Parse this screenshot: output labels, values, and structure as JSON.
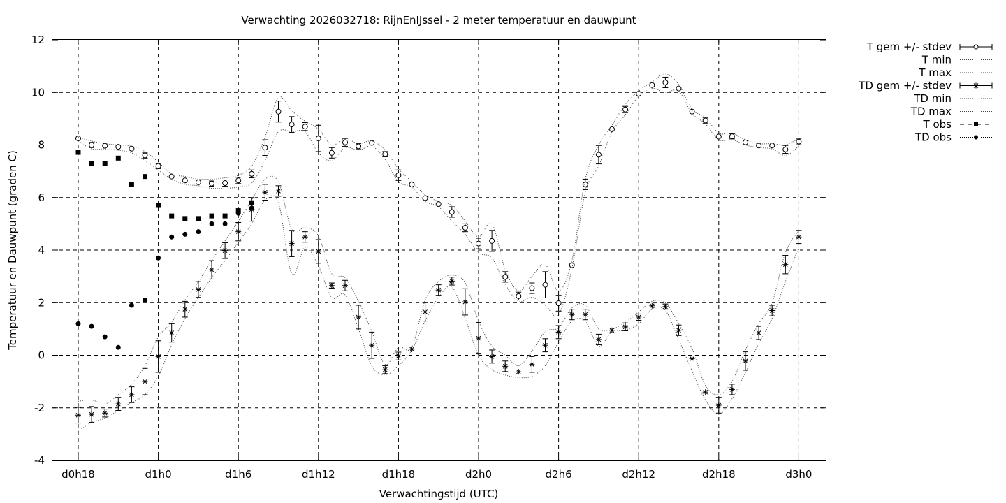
{
  "chart_data": {
    "type": "line",
    "title": "Verwachting 2026032718: RijnEnIJssel - 2 meter temperatuur en dauwpunt",
    "xlabel": "Verwachtingstijd (UTC)",
    "ylabel": "Temperatuur en Dauwpunt (graden C)",
    "x_ticks": [
      {
        "label": "d0h18",
        "hours": 0
      },
      {
        "label": "d1h0",
        "hours": 6
      },
      {
        "label": "d1h6",
        "hours": 12
      },
      {
        "label": "d1h12",
        "hours": 18
      },
      {
        "label": "d1h18",
        "hours": 24
      },
      {
        "label": "d2h0",
        "hours": 30
      },
      {
        "label": "d2h6",
        "hours": 36
      },
      {
        "label": "d2h12",
        "hours": 42
      },
      {
        "label": "d2h18",
        "hours": 48
      },
      {
        "label": "d3h0",
        "hours": 54
      }
    ],
    "xlim_hours": [
      -2,
      56
    ],
    "ylim": [
      -4,
      12
    ],
    "y_ticks": [
      -4,
      -2,
      0,
      2,
      4,
      6,
      8,
      10,
      12
    ],
    "grid": true,
    "legend_position": "outside-top-right",
    "series": [
      {
        "name": "T gem +/- stdev",
        "style": "circle-errorbar",
        "hours": [
          0,
          1,
          2,
          3,
          4,
          5,
          6,
          7,
          8,
          9,
          10,
          11,
          12,
          13,
          14,
          15,
          16,
          17,
          18,
          19,
          20,
          21,
          22,
          23,
          24,
          25,
          26,
          27,
          28,
          29,
          30,
          31,
          32,
          33,
          34,
          35,
          36,
          37,
          38,
          39,
          40,
          41,
          42,
          43,
          44,
          45,
          46,
          47,
          48,
          49,
          50,
          51,
          52,
          53,
          54
        ],
        "values": [
          8.25,
          8.0,
          7.97,
          7.93,
          7.86,
          7.6,
          7.2,
          6.8,
          6.65,
          6.58,
          6.53,
          6.55,
          6.65,
          6.9,
          7.9,
          9.27,
          8.78,
          8.7,
          8.25,
          7.7,
          8.1,
          7.95,
          8.08,
          7.65,
          6.85,
          6.5,
          5.98,
          5.75,
          5.45,
          4.85,
          4.25,
          4.35,
          2.98,
          2.25,
          2.55,
          2.68,
          1.98,
          3.43,
          6.5,
          7.63,
          8.6,
          9.35,
          9.95,
          10.28,
          10.38,
          10.15,
          9.27,
          8.93,
          8.32,
          8.33,
          8.1,
          7.98,
          7.98,
          7.83,
          8.13
        ],
        "stdev": [
          0.05,
          0.1,
          0.06,
          0.05,
          0.06,
          0.1,
          0.1,
          0.05,
          0.05,
          0.05,
          0.1,
          0.12,
          0.12,
          0.15,
          0.3,
          0.4,
          0.3,
          0.15,
          0.5,
          0.2,
          0.15,
          0.1,
          0.06,
          0.1,
          0.2,
          0.05,
          0.08,
          0.05,
          0.2,
          0.15,
          0.2,
          0.4,
          0.2,
          0.15,
          0.2,
          0.5,
          0.3,
          0.06,
          0.2,
          0.35,
          0.06,
          0.12,
          0.08,
          0.06,
          0.2,
          0.06,
          0.05,
          0.1,
          0.08,
          0.1,
          0.06,
          0.05,
          0.08,
          0.15,
          0.12
        ]
      },
      {
        "name": "T min",
        "style": "dotted",
        "hours": [
          0,
          1,
          2,
          3,
          4,
          5,
          6,
          7,
          8,
          9,
          10,
          11,
          12,
          13,
          14,
          15,
          16,
          17,
          18,
          19,
          20,
          21,
          22,
          23,
          24,
          25,
          26,
          27,
          28,
          29,
          30,
          31,
          32,
          33,
          34,
          35,
          36,
          37,
          38,
          39,
          40,
          41,
          42,
          43,
          44,
          45,
          46,
          47,
          48,
          49,
          50,
          51,
          52,
          53,
          54
        ],
        "values": [
          8.15,
          7.85,
          7.85,
          7.8,
          7.7,
          7.4,
          7.05,
          6.7,
          6.5,
          6.45,
          6.35,
          6.35,
          6.4,
          6.55,
          7.4,
          8.5,
          8.5,
          8.5,
          7.7,
          7.4,
          7.9,
          7.8,
          7.95,
          7.45,
          6.6,
          6.4,
          5.85,
          5.65,
          5.1,
          4.6,
          3.9,
          3.7,
          2.7,
          2.05,
          2.2,
          1.9,
          1.55,
          3.3,
          6.2,
          7.2,
          8.5,
          9.15,
          9.85,
          10.15,
          10.0,
          10.05,
          9.2,
          8.8,
          8.2,
          8.2,
          8.0,
          7.9,
          7.85,
          7.6,
          7.95
        ]
      },
      {
        "name": "T max",
        "style": "dotted",
        "hours": [
          0,
          1,
          2,
          3,
          4,
          5,
          6,
          7,
          8,
          9,
          10,
          11,
          12,
          13,
          14,
          15,
          16,
          17,
          18,
          19,
          20,
          21,
          22,
          23,
          24,
          25,
          26,
          27,
          28,
          29,
          30,
          31,
          32,
          33,
          34,
          35,
          36,
          37,
          38,
          39,
          40,
          41,
          42,
          43,
          44,
          45,
          46,
          47,
          48,
          49,
          50,
          51,
          52,
          53,
          54
        ],
        "values": [
          8.3,
          8.15,
          8.05,
          8.0,
          7.95,
          7.75,
          7.35,
          6.9,
          6.8,
          6.7,
          6.7,
          6.75,
          6.85,
          7.2,
          8.3,
          9.8,
          9.3,
          8.9,
          8.6,
          8.0,
          8.25,
          8.05,
          8.15,
          7.8,
          7.1,
          6.6,
          6.1,
          5.85,
          5.7,
          5.1,
          4.5,
          5.0,
          3.25,
          2.45,
          3.0,
          3.45,
          2.45,
          3.6,
          6.7,
          8.0,
          8.75,
          9.55,
          10.05,
          10.4,
          10.7,
          10.3,
          9.35,
          9.05,
          8.45,
          8.45,
          8.2,
          8.05,
          8.05,
          8.0,
          8.25
        ]
      },
      {
        "name": "TD gem +/- stdev",
        "style": "star-errorbar",
        "hours": [
          0,
          1,
          2,
          3,
          4,
          5,
          6,
          7,
          8,
          9,
          10,
          11,
          12,
          13,
          14,
          15,
          16,
          17,
          18,
          19,
          20,
          21,
          22,
          23,
          24,
          25,
          26,
          27,
          28,
          29,
          30,
          31,
          32,
          33,
          34,
          35,
          36,
          37,
          38,
          39,
          40,
          41,
          42,
          43,
          44,
          45,
          46,
          47,
          48,
          49,
          50,
          51,
          52,
          53,
          54
        ],
        "values": [
          -2.28,
          -2.25,
          -2.2,
          -1.85,
          -1.5,
          -1.0,
          -0.05,
          0.85,
          1.75,
          2.5,
          3.25,
          3.98,
          4.7,
          5.55,
          6.2,
          6.25,
          4.25,
          4.5,
          3.95,
          2.65,
          2.65,
          1.45,
          0.38,
          -0.55,
          -0.03,
          0.23,
          1.65,
          2.48,
          2.82,
          2.03,
          0.65,
          -0.05,
          -0.42,
          -0.63,
          -0.35,
          0.38,
          0.88,
          1.55,
          1.55,
          0.6,
          0.95,
          1.08,
          1.45,
          1.88,
          1.85,
          0.95,
          -0.13,
          -1.4,
          -1.9,
          -1.3,
          -0.22,
          0.85,
          1.7,
          3.45,
          4.5
        ]
      },
      {
        "name": "TD min",
        "style": "dotted",
        "hours": [
          0,
          1,
          2,
          3,
          4,
          5,
          6,
          7,
          8,
          9,
          10,
          11,
          12,
          13,
          14,
          15,
          16,
          17,
          18,
          19,
          20,
          21,
          22,
          23,
          24,
          25,
          26,
          27,
          28,
          29,
          30,
          31,
          32,
          33,
          34,
          35,
          36,
          37,
          38,
          39,
          40,
          41,
          42,
          43,
          44,
          45,
          46,
          47,
          48,
          49,
          50,
          51,
          52,
          53,
          54
        ],
        "values": [
          -2.9,
          -2.55,
          -2.4,
          -2.1,
          -1.8,
          -1.5,
          -0.8,
          0.4,
          1.4,
          2.2,
          2.95,
          3.6,
          4.3,
          5.0,
          5.9,
          5.8,
          3.1,
          4.1,
          3.4,
          2.2,
          2.3,
          1.0,
          -0.4,
          -0.75,
          -0.4,
          0.2,
          1.3,
          2.2,
          2.6,
          1.4,
          0.0,
          -0.55,
          -0.75,
          -0.85,
          -0.8,
          -0.4,
          0.5,
          1.3,
          1.3,
          0.35,
          0.9,
          0.95,
          1.2,
          1.75,
          1.7,
          0.6,
          -0.6,
          -1.7,
          -2.25,
          -1.65,
          -0.65,
          0.45,
          1.4,
          2.8,
          4.1
        ]
      },
      {
        "name": "TD max",
        "style": "dotted",
        "hours": [
          0,
          1,
          2,
          3,
          4,
          5,
          6,
          7,
          8,
          9,
          10,
          11,
          12,
          13,
          14,
          15,
          16,
          17,
          18,
          19,
          20,
          21,
          22,
          23,
          24,
          25,
          26,
          27,
          28,
          29,
          30,
          31,
          32,
          33,
          34,
          35,
          36,
          37,
          38,
          39,
          40,
          41,
          42,
          43,
          44,
          45,
          46,
          47,
          48,
          49,
          50,
          51,
          52,
          53,
          54
        ],
        "values": [
          -1.75,
          -1.7,
          -1.85,
          -1.5,
          -1.1,
          -0.4,
          0.7,
          1.25,
          2.1,
          2.8,
          3.6,
          4.35,
          5.1,
          5.9,
          6.7,
          6.6,
          4.8,
          4.85,
          4.55,
          3.1,
          2.95,
          2.05,
          0.9,
          -0.35,
          0.3,
          0.3,
          2.1,
          2.8,
          3.05,
          2.75,
          1.3,
          0.35,
          0.0,
          -0.4,
          0.15,
          0.9,
          1.05,
          1.8,
          1.9,
          1.0,
          1.0,
          1.25,
          1.65,
          2.05,
          2.0,
          1.2,
          0.25,
          -1.15,
          -1.5,
          -1.0,
          0.2,
          1.2,
          2.0,
          3.9,
          4.75
        ]
      },
      {
        "name": "T obs",
        "style": "filled-square",
        "hours": [
          0,
          1,
          2,
          3,
          4,
          5,
          6,
          7,
          8,
          9,
          10,
          11,
          12,
          13
        ],
        "values": [
          7.72,
          7.3,
          7.3,
          7.5,
          6.5,
          6.8,
          5.7,
          5.3,
          5.2,
          5.2,
          5.3,
          5.3,
          5.5,
          5.8
        ]
      },
      {
        "name": "TD obs",
        "style": "filled-circle",
        "hours": [
          0,
          1,
          2,
          3,
          4,
          5,
          6,
          7,
          8,
          9,
          10,
          11,
          12,
          13
        ],
        "values": [
          1.2,
          1.1,
          0.7,
          0.3,
          1.9,
          2.1,
          3.7,
          4.5,
          4.6,
          4.7,
          5.0,
          5.0,
          5.4,
          5.6
        ]
      }
    ]
  }
}
